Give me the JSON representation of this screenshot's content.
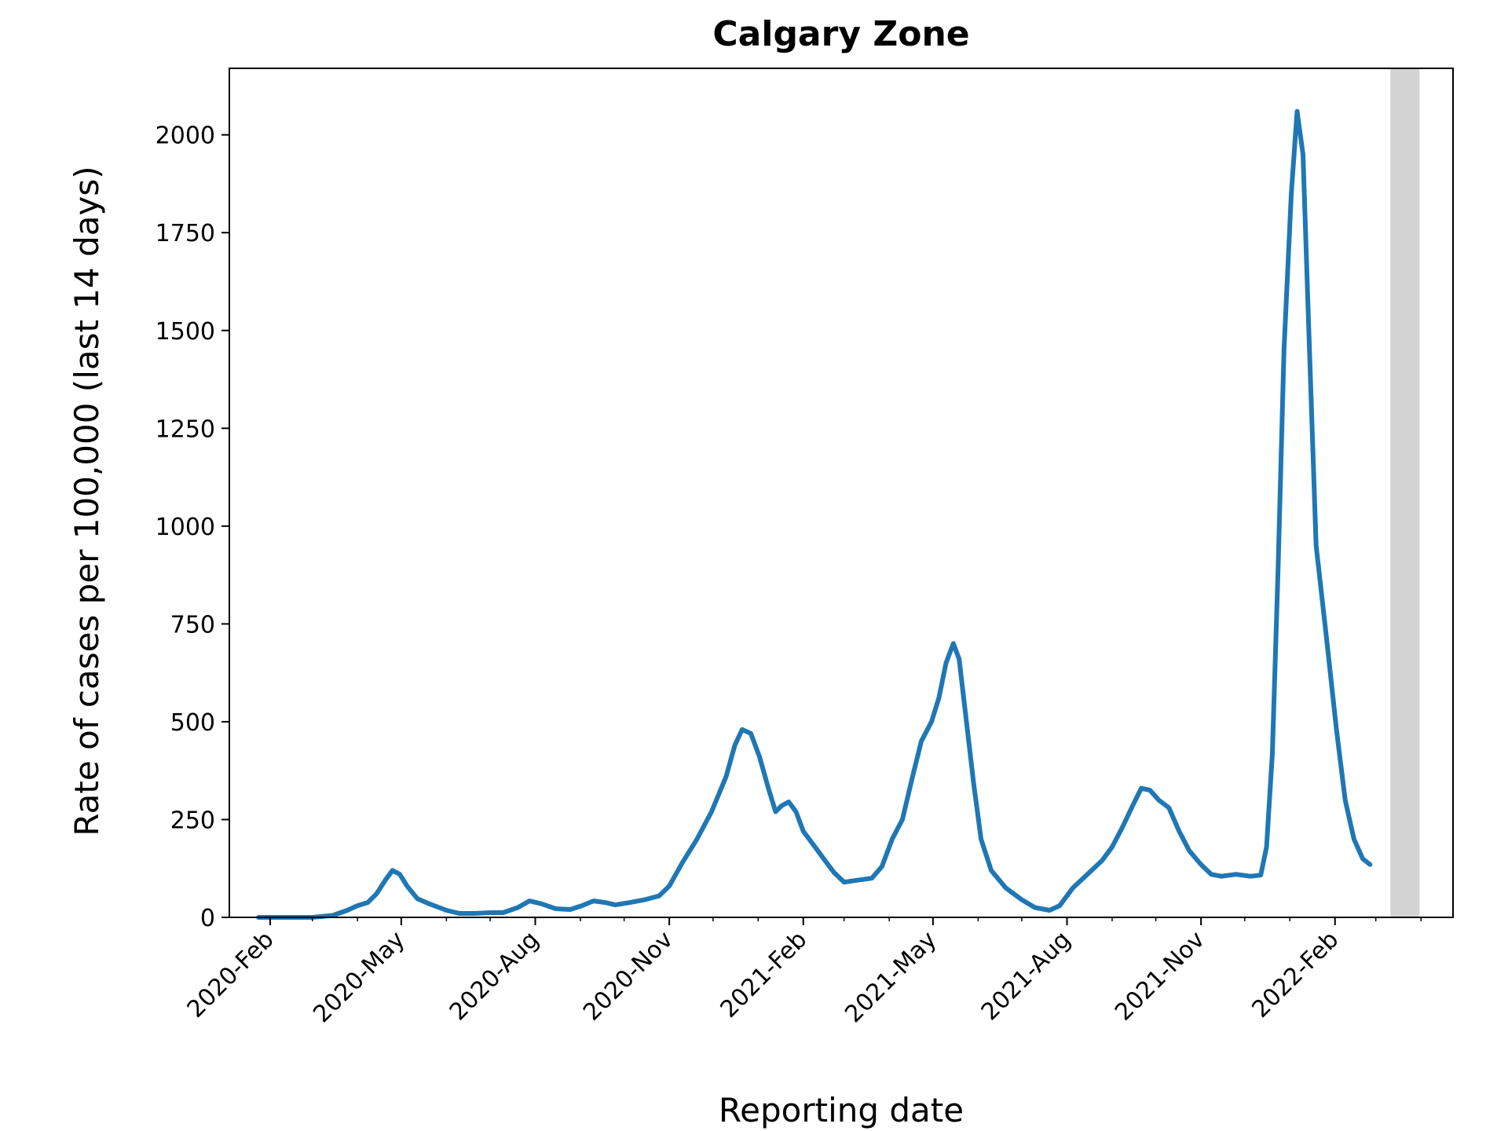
{
  "chart_data": {
    "type": "line",
    "title": "Calgary Zone",
    "xlabel": "Reporting date",
    "ylabel": "Rate of cases per 100,000 (last 14 days)",
    "xlim": [
      "2020-01-04",
      "2022-04-23"
    ],
    "ylim": [
      0,
      2170
    ],
    "yticks": [
      0,
      250,
      500,
      750,
      1000,
      1250,
      1500,
      1750,
      2000
    ],
    "xticks": [
      {
        "date": "2020-02-01",
        "label": "2020-Feb"
      },
      {
        "date": "2020-05-01",
        "label": "2020-May"
      },
      {
        "date": "2020-08-01",
        "label": "2020-Aug"
      },
      {
        "date": "2020-11-01",
        "label": "2020-Nov"
      },
      {
        "date": "2021-02-01",
        "label": "2021-Feb"
      },
      {
        "date": "2021-05-01",
        "label": "2021-May"
      },
      {
        "date": "2021-08-01",
        "label": "2021-Aug"
      },
      {
        "date": "2021-11-01",
        "label": "2021-Nov"
      },
      {
        "date": "2022-02-01",
        "label": "2022-Feb"
      }
    ],
    "minor_ticks": [
      "2020-03-01",
      "2020-04-01",
      "2020-06-01",
      "2020-07-01",
      "2020-09-01",
      "2020-10-01",
      "2020-12-01",
      "2021-01-01",
      "2021-03-01",
      "2021-04-01",
      "2021-06-01",
      "2021-07-01",
      "2021-09-01",
      "2021-10-01",
      "2021-12-01",
      "2022-01-01",
      "2022-03-01",
      "2022-04-01"
    ],
    "shaded_region": {
      "start": "2022-03-11",
      "end": "2022-03-31",
      "color": "#d3d3d3"
    },
    "grid": false,
    "legend": "none",
    "series": [
      {
        "color": "#1f77b4",
        "points": [
          [
            "2020-01-24",
            0
          ],
          [
            "2020-02-15",
            0
          ],
          [
            "2020-03-01",
            0
          ],
          [
            "2020-03-15",
            5
          ],
          [
            "2020-03-25",
            18
          ],
          [
            "2020-04-01",
            30
          ],
          [
            "2020-04-08",
            38
          ],
          [
            "2020-04-14",
            60
          ],
          [
            "2020-04-20",
            95
          ],
          [
            "2020-04-25",
            120
          ],
          [
            "2020-04-30",
            110
          ],
          [
            "2020-05-05",
            80
          ],
          [
            "2020-05-12",
            48
          ],
          [
            "2020-05-20",
            35
          ],
          [
            "2020-06-01",
            18
          ],
          [
            "2020-06-10",
            10
          ],
          [
            "2020-06-20",
            10
          ],
          [
            "2020-07-01",
            12
          ],
          [
            "2020-07-10",
            12
          ],
          [
            "2020-07-20",
            25
          ],
          [
            "2020-07-28",
            42
          ],
          [
            "2020-08-05",
            35
          ],
          [
            "2020-08-15",
            22
          ],
          [
            "2020-08-25",
            20
          ],
          [
            "2020-09-02",
            30
          ],
          [
            "2020-09-10",
            42
          ],
          [
            "2020-09-18",
            38
          ],
          [
            "2020-09-25",
            32
          ],
          [
            "2020-10-05",
            38
          ],
          [
            "2020-10-15",
            45
          ],
          [
            "2020-10-25",
            55
          ],
          [
            "2020-11-01",
            80
          ],
          [
            "2020-11-10",
            140
          ],
          [
            "2020-11-20",
            200
          ],
          [
            "2020-11-30",
            270
          ],
          [
            "2020-12-10",
            360
          ],
          [
            "2020-12-16",
            440
          ],
          [
            "2020-12-21",
            480
          ],
          [
            "2020-12-27",
            470
          ],
          [
            "2021-01-02",
            410
          ],
          [
            "2021-01-08",
            330
          ],
          [
            "2021-01-13",
            270
          ],
          [
            "2021-01-17",
            285
          ],
          [
            "2021-01-22",
            295
          ],
          [
            "2021-01-27",
            270
          ],
          [
            "2021-02-01",
            220
          ],
          [
            "2021-02-08",
            185
          ],
          [
            "2021-02-15",
            150
          ],
          [
            "2021-02-22",
            115
          ],
          [
            "2021-03-01",
            90
          ],
          [
            "2021-03-10",
            95
          ],
          [
            "2021-03-20",
            100
          ],
          [
            "2021-03-27",
            130
          ],
          [
            "2021-04-03",
            200
          ],
          [
            "2021-04-10",
            250
          ],
          [
            "2021-04-17",
            360
          ],
          [
            "2021-04-23",
            450
          ],
          [
            "2021-04-30",
            500
          ],
          [
            "2021-05-05",
            560
          ],
          [
            "2021-05-10",
            650
          ],
          [
            "2021-05-15",
            700
          ],
          [
            "2021-05-19",
            660
          ],
          [
            "2021-05-24",
            500
          ],
          [
            "2021-05-29",
            340
          ],
          [
            "2021-06-03",
            200
          ],
          [
            "2021-06-10",
            120
          ],
          [
            "2021-06-20",
            75
          ],
          [
            "2021-07-01",
            45
          ],
          [
            "2021-07-10",
            25
          ],
          [
            "2021-07-20",
            18
          ],
          [
            "2021-07-27",
            30
          ],
          [
            "2021-08-05",
            75
          ],
          [
            "2021-08-15",
            110
          ],
          [
            "2021-08-25",
            145
          ],
          [
            "2021-09-01",
            180
          ],
          [
            "2021-09-08",
            230
          ],
          [
            "2021-09-15",
            285
          ],
          [
            "2021-09-21",
            330
          ],
          [
            "2021-09-27",
            325
          ],
          [
            "2021-10-03",
            300
          ],
          [
            "2021-10-10",
            280
          ],
          [
            "2021-10-17",
            220
          ],
          [
            "2021-10-24",
            170
          ],
          [
            "2021-11-01",
            135
          ],
          [
            "2021-11-08",
            110
          ],
          [
            "2021-11-15",
            105
          ],
          [
            "2021-11-25",
            110
          ],
          [
            "2021-12-05",
            105
          ],
          [
            "2021-12-12",
            108
          ],
          [
            "2021-12-16",
            180
          ],
          [
            "2021-12-20",
            420
          ],
          [
            "2021-12-24",
            900
          ],
          [
            "2021-12-28",
            1450
          ],
          [
            "2022-01-02",
            1850
          ],
          [
            "2022-01-06",
            2060
          ],
          [
            "2022-01-10",
            1950
          ],
          [
            "2022-01-14",
            1500
          ],
          [
            "2022-01-19",
            950
          ],
          [
            "2022-01-26",
            720
          ],
          [
            "2022-02-02",
            480
          ],
          [
            "2022-02-08",
            300
          ],
          [
            "2022-02-14",
            200
          ],
          [
            "2022-02-20",
            150
          ],
          [
            "2022-02-25",
            135
          ]
        ]
      }
    ]
  }
}
